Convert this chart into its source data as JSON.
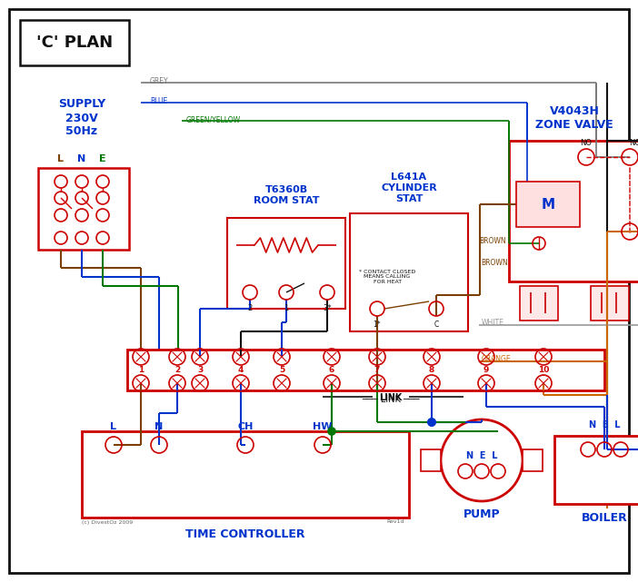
{
  "title": "'C' PLAN",
  "bg_color": "#ffffff",
  "red": "#cc0000",
  "blue": "#0033cc",
  "green": "#007700",
  "brown": "#7B3F00",
  "grey": "#777777",
  "orange": "#cc6600",
  "black": "#111111",
  "supply_text": "SUPPLY\n230V\n50Hz",
  "zone_valve_title": "V4043H\nZONE VALVE",
  "room_stat_title": "T6360B\nROOM STAT",
  "cyl_stat_title": "L641A\nCYLINDER\nSTAT",
  "time_controller_title": "TIME CONTROLLER",
  "pump_title": "PUMP",
  "boiler_title": "BOILER",
  "copyright": "(c) DivestOz 2009",
  "rev": "Rev1d"
}
